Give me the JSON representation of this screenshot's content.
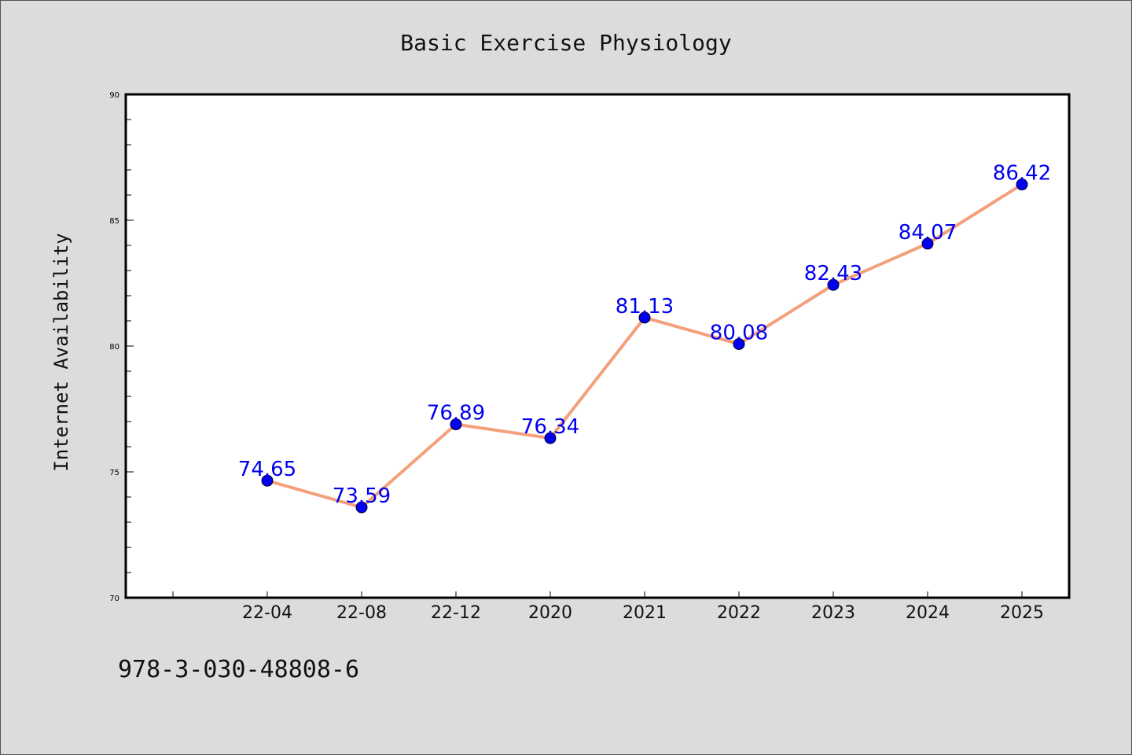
{
  "chart_data": {
    "type": "line",
    "title": "Basic Exercise Physiology",
    "xlabel": "",
    "ylabel": "Internet Availability",
    "categories": [
      "22-04",
      "22-08",
      "22-12",
      "2020",
      "2021",
      "2022",
      "2023",
      "2024",
      "2025"
    ],
    "series": [
      {
        "values": [
          74.65,
          73.59,
          76.89,
          76.34,
          81.13,
          80.08,
          82.43,
          84.07,
          86.42
        ],
        "labels": [
          "74.65",
          "73.59",
          "76.89",
          "76.34",
          "81.13",
          "80.08",
          "82.43",
          "84.07",
          "86.42"
        ],
        "line_color": "#f4a07a",
        "marker_color": "#0000ee"
      }
    ],
    "ylim": [
      70,
      90
    ],
    "y_ticks": [
      "70",
      "75",
      "80",
      "85",
      "90"
    ],
    "grid": false,
    "legend": "none",
    "label_color": "#0000ee"
  },
  "footer": {
    "isbn": "978-3-030-48808-6"
  }
}
